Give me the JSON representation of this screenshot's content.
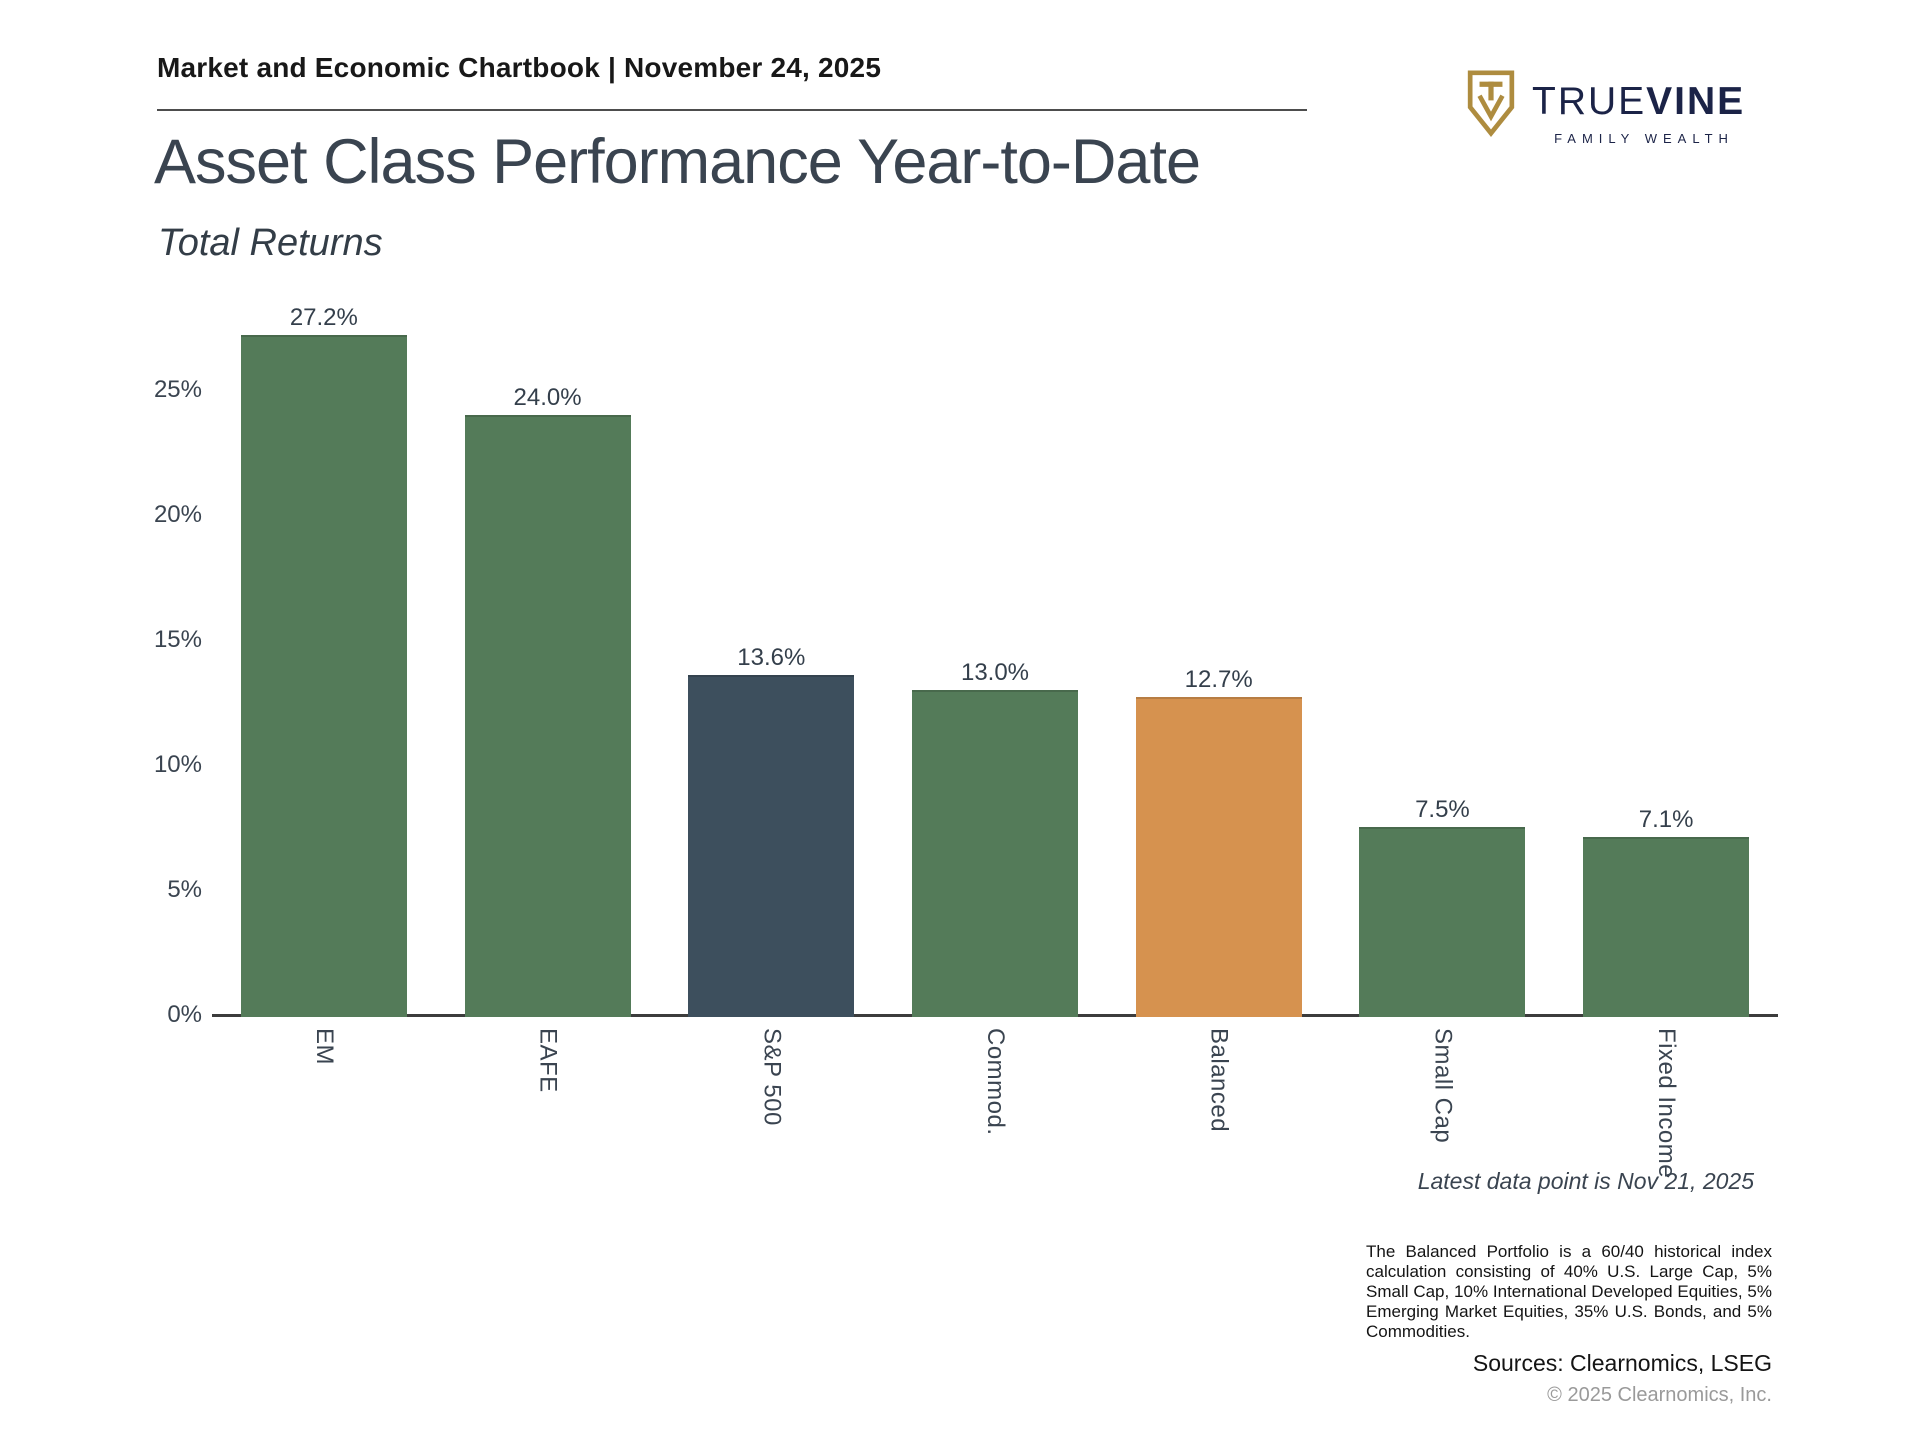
{
  "header": {
    "chartbook_line": "Market and Economic Chartbook | November 24, 2025",
    "title": "Asset Class Performance Year-to-Date",
    "subtitle": "Total Returns"
  },
  "logo": {
    "brand_primary": "TRUE",
    "brand_secondary": "VINE",
    "tagline": "FAMILY WEALTH",
    "shield_color": "#ae8c3f",
    "text_color": "#1b2347"
  },
  "chart_data": {
    "type": "bar",
    "title": "Asset Class Performance Year-to-Date",
    "subtitle": "Total Returns",
    "xlabel": "",
    "ylabel": "",
    "categories": [
      "EM",
      "EAFE",
      "S&P 500",
      "Commod.",
      "Balanced",
      "Small Cap",
      "Fixed Income"
    ],
    "values": [
      27.2,
      24.0,
      13.6,
      13.0,
      12.7,
      7.5,
      7.1
    ],
    "value_labels": [
      "27.2%",
      "24.0%",
      "13.6%",
      "13.0%",
      "12.7%",
      "7.5%",
      "7.1%"
    ],
    "bar_colors": [
      "#547b59",
      "#547b59",
      "#3d4f5d",
      "#547b59",
      "#d6924f",
      "#547b59",
      "#547b59"
    ],
    "colors": {
      "green": "#547b59",
      "navy": "#3d4f5d",
      "orange": "#d6924f",
      "axis": "#3c3c3c",
      "label_text": "#3a4450"
    },
    "ylim": [
      0,
      28.5
    ],
    "yticks": [
      0,
      5,
      10,
      15,
      20,
      25
    ],
    "ytick_labels": [
      "0%",
      "5%",
      "10%",
      "15%",
      "20%",
      "25%"
    ],
    "grid": false,
    "legend": false
  },
  "annotations": {
    "latest_data": "Latest data point is Nov 21, 2025",
    "footnote": "The Balanced Portfolio is a 60/40 historical index calculation consisting of 40% U.S. Large Cap, 5% Small Cap, 10% International Developed Equities, 5% Emerging Market Equities, 35% U.S. Bonds, and 5% Commodities.",
    "sources": "Sources: Clearnomics, LSEG",
    "copyright": "© 2025 Clearnomics, Inc."
  }
}
